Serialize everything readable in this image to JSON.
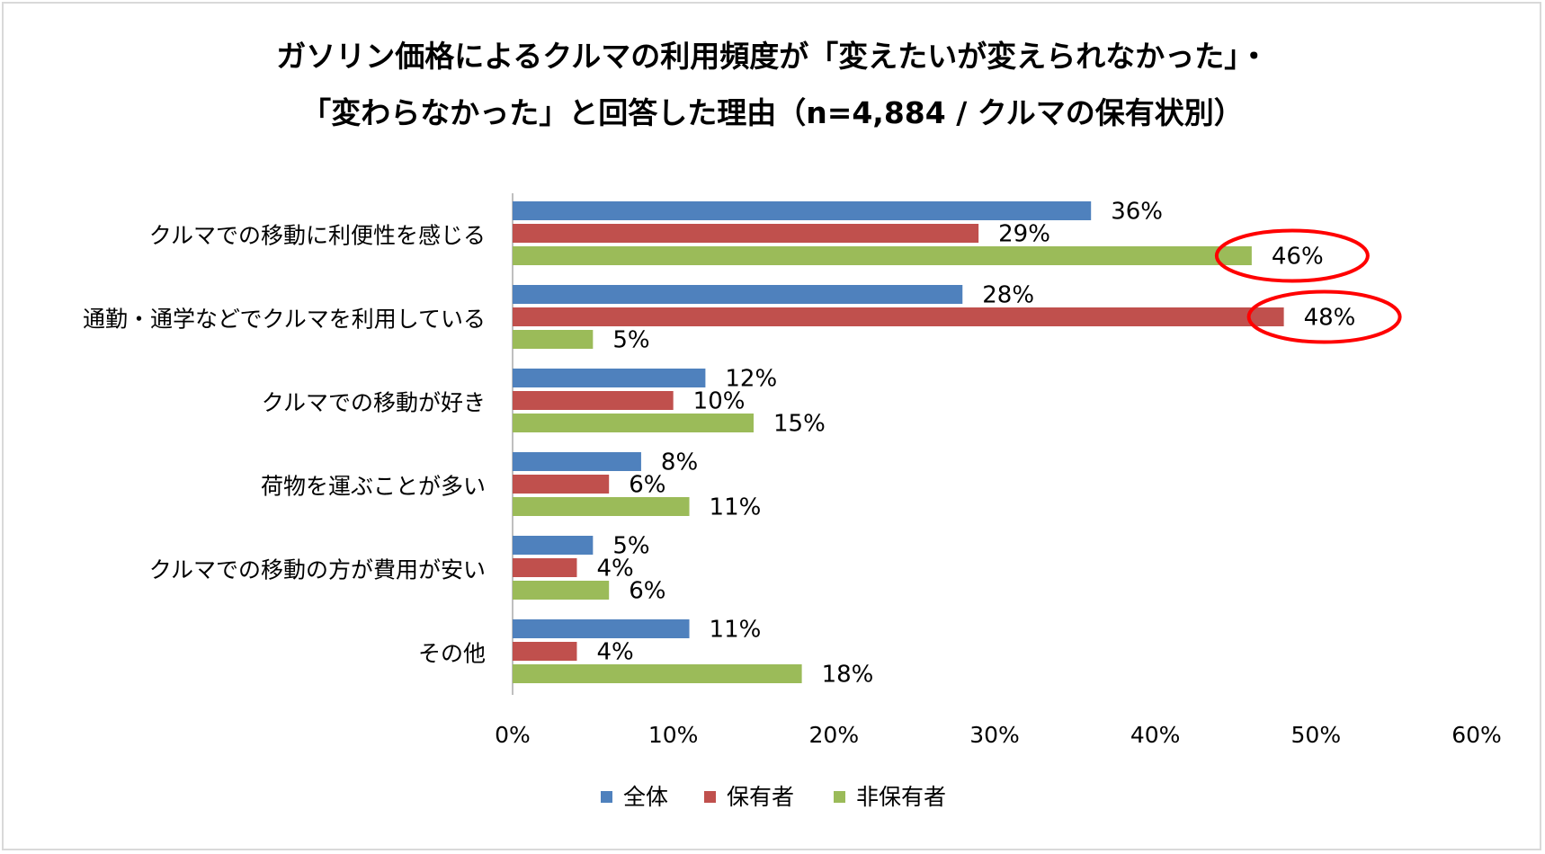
{
  "chart_data": {
    "type": "bar",
    "orientation": "horizontal",
    "title": "ガソリン価格によるクルマの利用頻度が「変えたいが変えられなかった」・",
    "subtitle": "「変わらなかった」と回答した理由（n=4,884 / クルマの保有状別）",
    "categories": [
      "クルマでの移動に利便性を感じる",
      "通勤・通学などでクルマを利用している",
      "クルマでの移動が好き",
      "荷物を運ぶことが多い",
      "クルマでの移動の方が費用が安い",
      "その他"
    ],
    "series": [
      {
        "name": "全体",
        "color": "#4f81bd",
        "values": [
          36,
          28,
          12,
          8,
          5,
          11
        ]
      },
      {
        "name": "保有者",
        "color": "#c0504d",
        "values": [
          29,
          48,
          10,
          6,
          4,
          4
        ]
      },
      {
        "name": "非保有者",
        "color": "#9bbb59",
        "values": [
          46,
          5,
          15,
          11,
          6,
          18
        ]
      }
    ],
    "value_suffix": "%",
    "xlim": [
      0,
      60
    ],
    "xticks": [
      "0%",
      "10%",
      "20%",
      "30%",
      "40%",
      "50%",
      "60%"
    ],
    "grid": false,
    "legend_position": "bottom",
    "highlights": [
      {
        "category_index": 0,
        "series_index": 2,
        "shape": "ellipse",
        "color": "#ff0000"
      },
      {
        "category_index": 1,
        "series_index": 1,
        "shape": "ellipse",
        "color": "#ff0000"
      }
    ]
  }
}
